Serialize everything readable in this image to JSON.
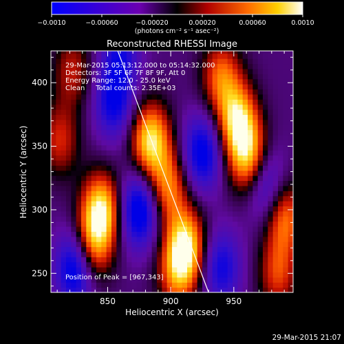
{
  "chart_data": {
    "type": "heatmap",
    "title": "Reconstructed RHESSI Image",
    "xlabel": "Heliocentric X (arcsec)",
    "ylabel": "Heliocentric Y (arcsec)",
    "xlim": [
      805,
      997
    ],
    "ylim": [
      235,
      425
    ],
    "x_ticks": [
      "850",
      "900",
      "950"
    ],
    "x_tick_values": [
      850,
      900,
      950
    ],
    "y_ticks": [
      "250",
      "300",
      "350",
      "400"
    ],
    "y_tick_values": [
      250,
      300,
      350,
      400
    ],
    "colorbar": {
      "range": [
        -0.001,
        0.001
      ],
      "ticks": [
        "−0.0010",
        "−0.00060",
        "−0.00020",
        "0.00020",
        "0.00060",
        "0.0010"
      ],
      "tick_values": [
        -0.001,
        -0.0006,
        -0.0002,
        0.0002,
        0.0006,
        0.001
      ],
      "unit_label": "(photons cm⁻² s⁻¹ asec⁻²)"
    },
    "annotations": [
      "29-Mar-2015 05:13:12.000 to 05:14:32.000",
      "Detectors: 3F 5F 6F 7F 8F 9F, Att 0",
      "Energy Range: 12.0 - 25.0 keV",
      "Clean     Total counts: 2.35E+03"
    ],
    "peak_label": "Position of Peak = [967,343]",
    "peak": {
      "x": 967,
      "y": 343
    },
    "limb_line": [
      [
        858,
        425
      ],
      [
        930,
        235
      ]
    ],
    "blobs": [
      {
        "x": 845,
        "y": 300,
        "amp": 1.0
      },
      {
        "x": 837,
        "y": 270,
        "amp": 0.75
      },
      {
        "x": 812,
        "y": 355,
        "amp": 0.5
      },
      {
        "x": 822,
        "y": 410,
        "amp": 0.45
      },
      {
        "x": 884,
        "y": 355,
        "amp": 1.0
      },
      {
        "x": 898,
        "y": 318,
        "amp": 0.7
      },
      {
        "x": 912,
        "y": 272,
        "amp": 0.95
      },
      {
        "x": 905,
        "y": 250,
        "amp": 0.6
      },
      {
        "x": 953,
        "y": 370,
        "amp": 0.95
      },
      {
        "x": 962,
        "y": 340,
        "amp": 0.85
      },
      {
        "x": 940,
        "y": 405,
        "amp": 0.65
      },
      {
        "x": 990,
        "y": 295,
        "amp": 0.7
      },
      {
        "x": 985,
        "y": 250,
        "amp": 0.55
      },
      {
        "x": 925,
        "y": 345,
        "amp": -0.75
      },
      {
        "x": 875,
        "y": 300,
        "amp": -0.85
      },
      {
        "x": 825,
        "y": 255,
        "amp": -0.9
      },
      {
        "x": 975,
        "y": 320,
        "amp": -0.6
      },
      {
        "x": 855,
        "y": 385,
        "amp": -0.65
      },
      {
        "x": 940,
        "y": 255,
        "amp": -0.6
      },
      {
        "x": 860,
        "y": 425,
        "amp": -0.5
      }
    ]
  },
  "footer_timestamp": "29-Mar-2015 21:07",
  "colors": {
    "background": "#000000",
    "axis": "#ffffff",
    "text": "#ffffff"
  }
}
